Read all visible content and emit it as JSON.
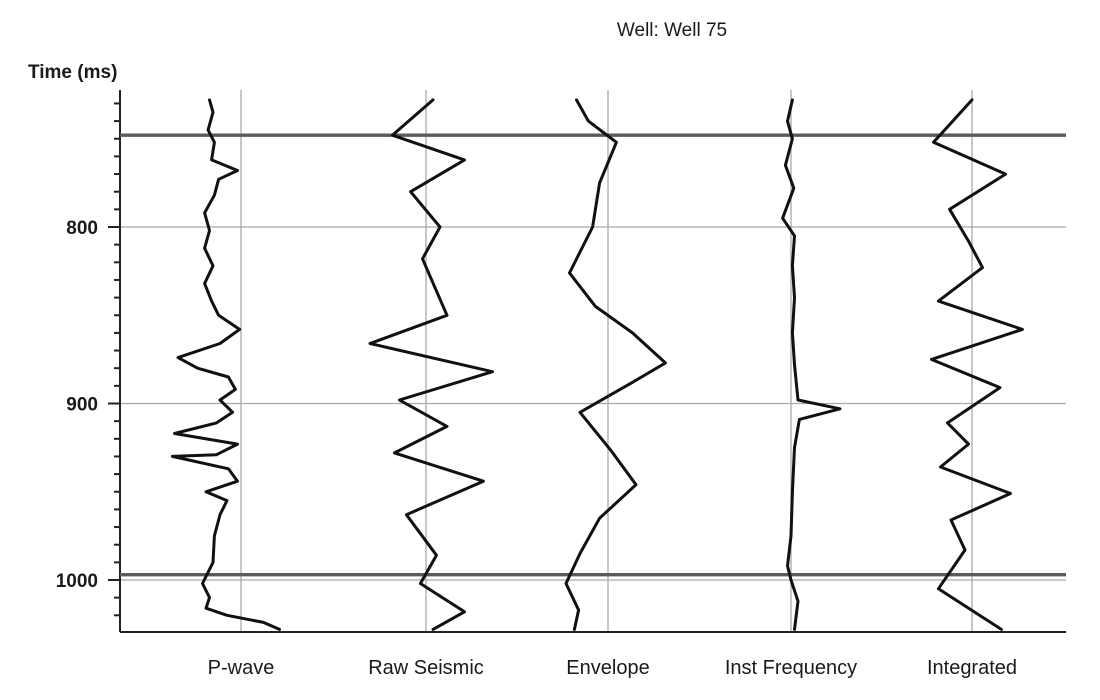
{
  "chart_data": {
    "type": "line",
    "title": "Well: Well 75",
    "ylabel": "Time (ms)",
    "ylim": [
      725,
      1028
    ],
    "yticks": [
      800,
      900,
      1000
    ],
    "horizons": [
      748,
      997
    ],
    "tracks": [
      {
        "name": "P-wave",
        "baseline": 0,
        "points": [
          [
            -0.45,
            728
          ],
          [
            -0.4,
            735
          ],
          [
            -0.47,
            745
          ],
          [
            -0.38,
            752
          ],
          [
            -0.42,
            762
          ],
          [
            -0.05,
            768
          ],
          [
            -0.32,
            773
          ],
          [
            -0.38,
            782
          ],
          [
            -0.52,
            792
          ],
          [
            -0.45,
            802
          ],
          [
            -0.52,
            812
          ],
          [
            -0.4,
            822
          ],
          [
            -0.52,
            832
          ],
          [
            -0.42,
            842
          ],
          [
            -0.32,
            850
          ],
          [
            -0.02,
            858
          ],
          [
            -0.3,
            866
          ],
          [
            -0.9,
            874
          ],
          [
            -0.62,
            880
          ],
          [
            -0.18,
            885
          ],
          [
            -0.08,
            892
          ],
          [
            -0.3,
            898
          ],
          [
            -0.12,
            905
          ],
          [
            -0.35,
            911
          ],
          [
            -0.95,
            917
          ],
          [
            -0.05,
            923
          ],
          [
            -0.35,
            929
          ],
          [
            -0.98,
            930
          ],
          [
            -0.18,
            937
          ],
          [
            -0.05,
            944
          ],
          [
            -0.5,
            950
          ],
          [
            -0.2,
            955
          ],
          [
            -0.3,
            963
          ],
          [
            -0.38,
            975
          ],
          [
            -0.4,
            990
          ],
          [
            -0.55,
            1002
          ],
          [
            -0.45,
            1010
          ],
          [
            -0.5,
            1016
          ],
          [
            -0.2,
            1020
          ],
          [
            0.32,
            1024
          ],
          [
            0.55,
            1028
          ]
        ]
      },
      {
        "name": "Raw Seismic",
        "baseline": 0,
        "points": [
          [
            0.1,
            728
          ],
          [
            -0.48,
            748
          ],
          [
            0.55,
            762
          ],
          [
            -0.22,
            780
          ],
          [
            0.2,
            800
          ],
          [
            -0.05,
            818
          ],
          [
            0.3,
            850
          ],
          [
            -0.8,
            866
          ],
          [
            0.95,
            882
          ],
          [
            -0.38,
            898
          ],
          [
            0.3,
            913
          ],
          [
            -0.45,
            928
          ],
          [
            0.82,
            944
          ],
          [
            -0.28,
            963
          ],
          [
            0.15,
            986
          ],
          [
            -0.08,
            1002
          ],
          [
            0.55,
            1018
          ],
          [
            0.1,
            1028
          ]
        ]
      },
      {
        "name": "Envelope",
        "baseline": 0,
        "points": [
          [
            -0.45,
            728
          ],
          [
            -0.28,
            740
          ],
          [
            0.12,
            752
          ],
          [
            -0.12,
            775
          ],
          [
            -0.22,
            800
          ],
          [
            -0.55,
            826
          ],
          [
            -0.18,
            845
          ],
          [
            0.35,
            860
          ],
          [
            0.82,
            877
          ],
          [
            0.35,
            888
          ],
          [
            -0.4,
            905
          ],
          [
            0.05,
            927
          ],
          [
            0.4,
            946
          ],
          [
            -0.12,
            965
          ],
          [
            -0.4,
            985
          ],
          [
            -0.6,
            1002
          ],
          [
            -0.42,
            1017
          ],
          [
            -0.48,
            1028
          ]
        ]
      },
      {
        "name": "Inst Frequency",
        "baseline": 0,
        "points": [
          [
            0.02,
            728
          ],
          [
            -0.05,
            740
          ],
          [
            0.02,
            750
          ],
          [
            -0.08,
            765
          ],
          [
            0.04,
            778
          ],
          [
            -0.12,
            795
          ],
          [
            0.05,
            805
          ],
          [
            0.02,
            822
          ],
          [
            0.05,
            840
          ],
          [
            0.02,
            860
          ],
          [
            0.05,
            878
          ],
          [
            0.08,
            890
          ],
          [
            0.1,
            898
          ],
          [
            0.7,
            903
          ],
          [
            0.12,
            909
          ],
          [
            0.05,
            925
          ],
          [
            0.02,
            950
          ],
          [
            0.0,
            975
          ],
          [
            -0.05,
            992
          ],
          [
            0.0,
            1000
          ],
          [
            0.1,
            1012
          ],
          [
            0.05,
            1028
          ]
        ]
      },
      {
        "name": "Integrated",
        "baseline": 0,
        "points": [
          [
            0.0,
            728
          ],
          [
            -0.55,
            752
          ],
          [
            0.48,
            770
          ],
          [
            -0.32,
            790
          ],
          [
            -0.05,
            808
          ],
          [
            0.15,
            823
          ],
          [
            -0.48,
            842
          ],
          [
            0.72,
            858
          ],
          [
            -0.58,
            875
          ],
          [
            0.4,
            891
          ],
          [
            -0.35,
            911
          ],
          [
            -0.05,
            923
          ],
          [
            -0.45,
            936
          ],
          [
            0.55,
            951
          ],
          [
            -0.3,
            966
          ],
          [
            -0.1,
            983
          ],
          [
            -0.48,
            1005
          ],
          [
            0.42,
            1028
          ]
        ]
      }
    ]
  }
}
